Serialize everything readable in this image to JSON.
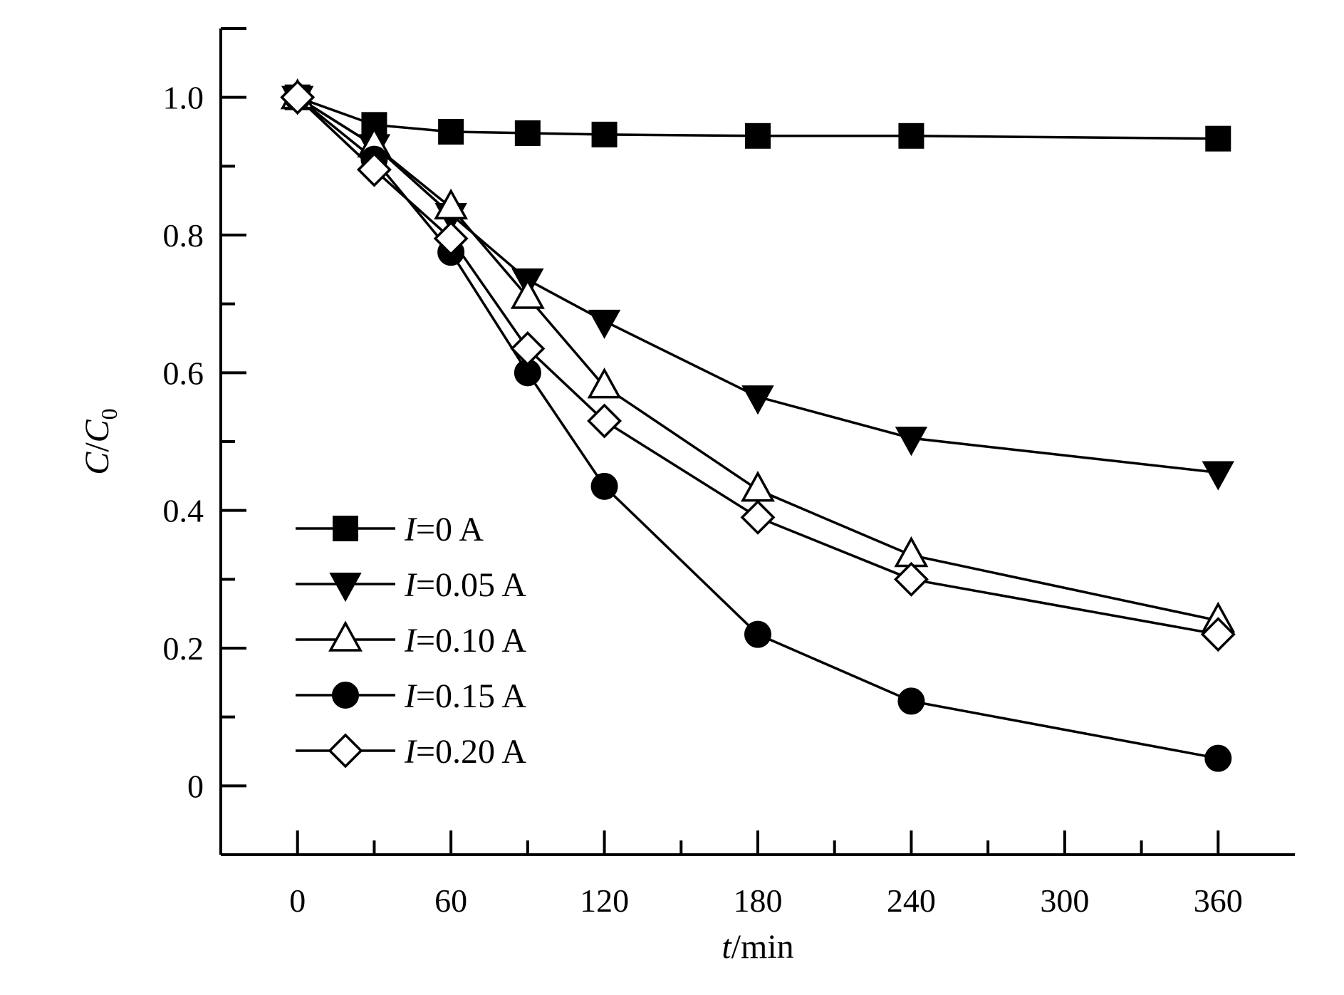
{
  "chart_data": {
    "type": "line",
    "title": "",
    "xlabel": {
      "var": "t",
      "unit": "/min"
    },
    "ylabel": {
      "var1": "C",
      "sep": "/",
      "var2": "C",
      "sub": "0"
    },
    "xlim": [
      -30,
      390
    ],
    "ylim": [
      -0.1,
      1.1
    ],
    "x_ticks": [
      0,
      60,
      120,
      180,
      240,
      300,
      360
    ],
    "x_tick_labels": [
      "0",
      "60",
      "120",
      "180",
      "240",
      "300",
      "360"
    ],
    "x_minor_ticks": [
      30,
      90,
      150,
      210,
      270,
      330
    ],
    "y_ticks": [
      0,
      0.2,
      0.4,
      0.6,
      0.8,
      1.0
    ],
    "y_tick_labels": [
      "0",
      "0.2",
      "0.4",
      "0.6",
      "0.8",
      "1.0"
    ],
    "y_minor_ticks": [
      0.1,
      0.3,
      0.5,
      0.7,
      0.9
    ],
    "grid": false,
    "legend_position": "bottom-left",
    "series": [
      {
        "name": "I=0 A",
        "label_var": "I",
        "label_rest": "=0 A",
        "marker": "square-filled",
        "x": [
          0,
          30,
          60,
          90,
          120,
          180,
          240,
          360
        ],
        "values": [
          1.0,
          0.96,
          0.95,
          0.948,
          0.946,
          0.944,
          0.944,
          0.94
        ]
      },
      {
        "name": "I=0.05 A",
        "label_var": "I",
        "label_rest": "=0.05 A",
        "marker": "triangle-down-filled",
        "x": [
          0,
          30,
          60,
          90,
          120,
          180,
          240,
          360
        ],
        "values": [
          1.0,
          0.93,
          0.83,
          0.735,
          0.675,
          0.565,
          0.505,
          0.455
        ]
      },
      {
        "name": "I=0.10 A",
        "label_var": "I",
        "label_rest": "=0.10 A",
        "marker": "triangle-up-open",
        "x": [
          0,
          30,
          60,
          90,
          120,
          180,
          240,
          360
        ],
        "values": [
          1.0,
          0.93,
          0.84,
          0.71,
          0.58,
          0.43,
          0.335,
          0.24
        ]
      },
      {
        "name": "I=0.15 A",
        "label_var": "I",
        "label_rest": "=0.15 A",
        "marker": "circle-filled",
        "x": [
          0,
          30,
          60,
          90,
          120,
          180,
          240,
          360
        ],
        "values": [
          1.0,
          0.91,
          0.775,
          0.6,
          0.435,
          0.22,
          0.123,
          0.04
        ]
      },
      {
        "name": "I=0.20 A",
        "label_var": "I",
        "label_rest": "=0.20 A",
        "marker": "diamond-open",
        "x": [
          0,
          30,
          60,
          90,
          120,
          180,
          240,
          360
        ],
        "values": [
          1.0,
          0.895,
          0.795,
          0.635,
          0.53,
          0.39,
          0.3,
          0.22
        ]
      }
    ]
  }
}
